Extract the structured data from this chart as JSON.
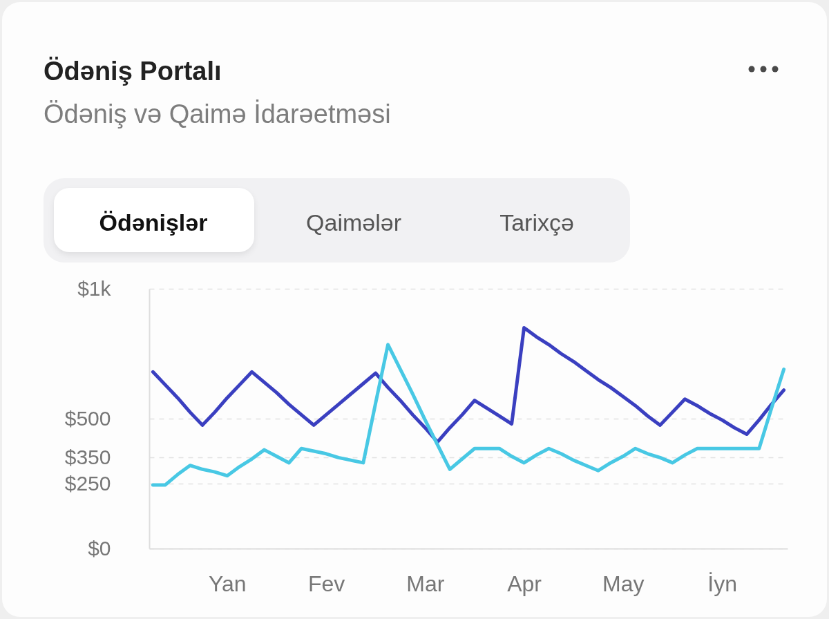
{
  "chart_data": {
    "type": "line",
    "title": "Ödəniş Portalı",
    "subtitle": "Ödəniş və Qaimə İdarəetməsi",
    "annotations": [
      "Ödənişlər",
      "Qaimələr",
      "Tarixçə"
    ],
    "categories": [
      null,
      null,
      null,
      null,
      null,
      null,
      "Yan",
      null,
      null,
      null,
      null,
      null,
      null,
      null,
      "Fev",
      null,
      null,
      null,
      null,
      null,
      null,
      null,
      "Mar",
      null,
      null,
      null,
      null,
      null,
      null,
      null,
      "Apr",
      null,
      null,
      null,
      null,
      null,
      null,
      null,
      "May",
      null,
      null,
      null,
      null,
      null,
      null,
      null,
      "İyn",
      null,
      null,
      null,
      null,
      null
    ],
    "ylim": [
      0,
      1000
    ],
    "yticks": [
      {
        "value": 0,
        "label": "$0"
      },
      {
        "value": 250,
        "label": "$250"
      },
      {
        "value": 350,
        "label": "$350"
      },
      {
        "value": 500,
        "label": "$500"
      },
      {
        "value": 1000,
        "label": "$1k"
      }
    ],
    "grid": "y",
    "line_style": "solid",
    "series": [
      {
        "color": "#3a3fc0",
        "values": [
          680,
          630,
          580,
          525,
          475,
          525,
          580,
          630,
          680,
          640,
          600,
          555,
          515,
          475,
          515,
          555,
          595,
          635,
          675,
          620,
          570,
          515,
          465,
          410,
          465,
          515,
          570,
          540,
          510,
          480,
          850,
          815,
          785,
          750,
          720,
          685,
          650,
          620,
          585,
          550,
          510,
          475,
          525,
          575,
          550,
          520,
          495,
          465,
          440,
          495,
          555,
          610
        ]
      },
      {
        "color": "#48c8e4",
        "values": [
          245,
          245,
          285,
          320,
          305,
          295,
          280,
          315,
          345,
          380,
          355,
          330,
          385,
          375,
          365,
          350,
          340,
          330,
          560,
          785,
          690,
          595,
          495,
          400,
          305,
          345,
          385,
          385,
          385,
          355,
          330,
          360,
          385,
          365,
          340,
          320,
          300,
          330,
          355,
          385,
          365,
          350,
          330,
          360,
          385,
          385,
          385,
          385,
          385,
          385,
          540,
          690
        ]
      }
    ]
  }
}
